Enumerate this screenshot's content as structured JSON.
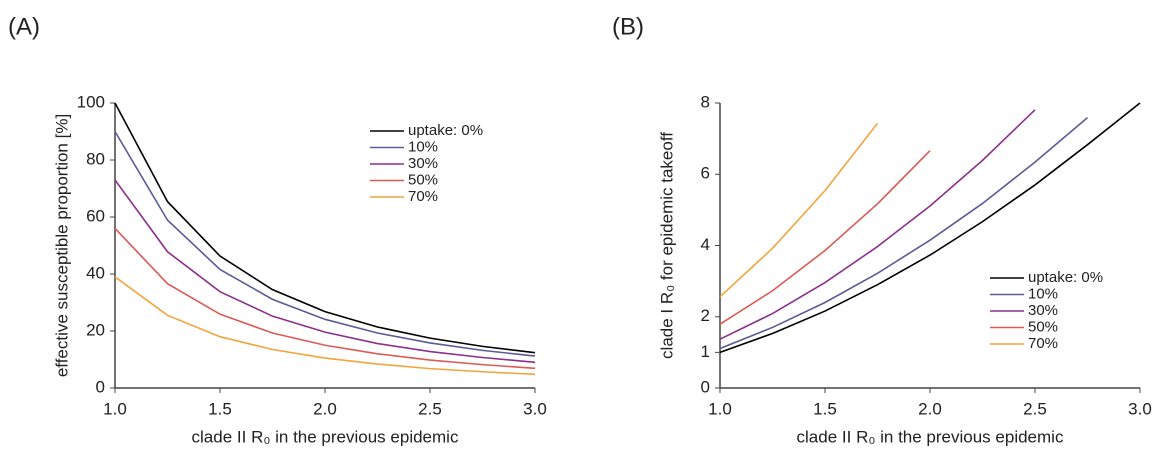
{
  "chart_data": [
    {
      "type": "line",
      "panel_label": "(A)",
      "x_label": "clade II R₀ in the previous epidemic",
      "y_label": "effective susceptible proportion [%]",
      "x": [
        1,
        1.25,
        1.5,
        1.75,
        2,
        2.25,
        2.5,
        2.75,
        3
      ],
      "xlim": [
        1,
        3
      ],
      "ylim": [
        0,
        100
      ],
      "xticks": [
        {
          "value": 1,
          "label": "1.0"
        },
        {
          "value": 1.5,
          "label": "1.5"
        },
        {
          "value": 2,
          "label": "2.0"
        },
        {
          "value": 2.5,
          "label": "2.5"
        },
        {
          "value": 3,
          "label": "3.0"
        }
      ],
      "yticks": [
        0,
        20,
        40,
        60,
        80,
        100
      ],
      "legend": "upper right",
      "series": [
        {
          "name": "uptake: 0%",
          "color": "#000000",
          "values": [
            100,
            65.4,
            46.3,
            34.5,
            26.8,
            21.4,
            17.5,
            14.6,
            12.4
          ]
        },
        {
          "name": "10%",
          "color": "#5b5b98",
          "values": [
            90,
            58.9,
            41.6,
            31.1,
            24.1,
            19.3,
            15.8,
            13.2,
            11.2
          ]
        },
        {
          "name": "30%",
          "color": "#8e2f8e",
          "values": [
            73,
            47.8,
            33.8,
            25.2,
            19.6,
            15.6,
            12.8,
            10.7,
            9.0
          ]
        },
        {
          "name": "50%",
          "color": "#dc5a55",
          "values": [
            56,
            36.6,
            25.9,
            19.3,
            15.0,
            12.0,
            9.8,
            8.2,
            6.9
          ]
        },
        {
          "name": "70%",
          "color": "#f4a43c",
          "values": [
            39,
            25.5,
            18.0,
            13.5,
            10.5,
            8.4,
            6.8,
            5.7,
            4.8
          ]
        }
      ]
    },
    {
      "type": "line",
      "panel_label": "(B)",
      "x_label": "clade II R₀ in the previous epidemic",
      "y_label": "clade I R₀ for epidemic takeoff",
      "x": [
        1,
        1.25,
        1.5,
        1.75,
        2,
        2.25,
        2.5,
        2.75,
        3
      ],
      "xlim": [
        1,
        3
      ],
      "ylim": [
        0,
        8
      ],
      "xticks": [
        {
          "value": 1,
          "label": "1.0"
        },
        {
          "value": 1.5,
          "label": "1.5"
        },
        {
          "value": 2,
          "label": "2.0"
        },
        {
          "value": 2.5,
          "label": "2.5"
        },
        {
          "value": 3,
          "label": "3.0"
        }
      ],
      "yticks": [
        0,
        1,
        2,
        4,
        6,
        8
      ],
      "legend": "lower right",
      "series": [
        {
          "name": "uptake: 0%",
          "color": "#000000",
          "values": [
            1,
            1.53,
            2.16,
            2.9,
            3.73,
            4.67,
            5.7,
            6.83,
            8
          ]
        },
        {
          "name": "10%",
          "color": "#5b5b98",
          "values": [
            1.11,
            1.7,
            2.4,
            3.22,
            4.15,
            5.18,
            6.34,
            7.59,
            null
          ]
        },
        {
          "name": "30%",
          "color": "#8e2f8e",
          "values": [
            1.37,
            2.09,
            2.96,
            3.97,
            5.11,
            6.39,
            7.81,
            null,
            null
          ]
        },
        {
          "name": "50%",
          "color": "#dc5a55",
          "values": [
            1.79,
            2.73,
            3.86,
            5.17,
            6.66,
            null,
            null,
            null,
            null
          ]
        },
        {
          "name": "70%",
          "color": "#f4a43c",
          "values": [
            2.56,
            3.92,
            5.54,
            7.43,
            null,
            null,
            null,
            null,
            null
          ]
        }
      ]
    }
  ]
}
